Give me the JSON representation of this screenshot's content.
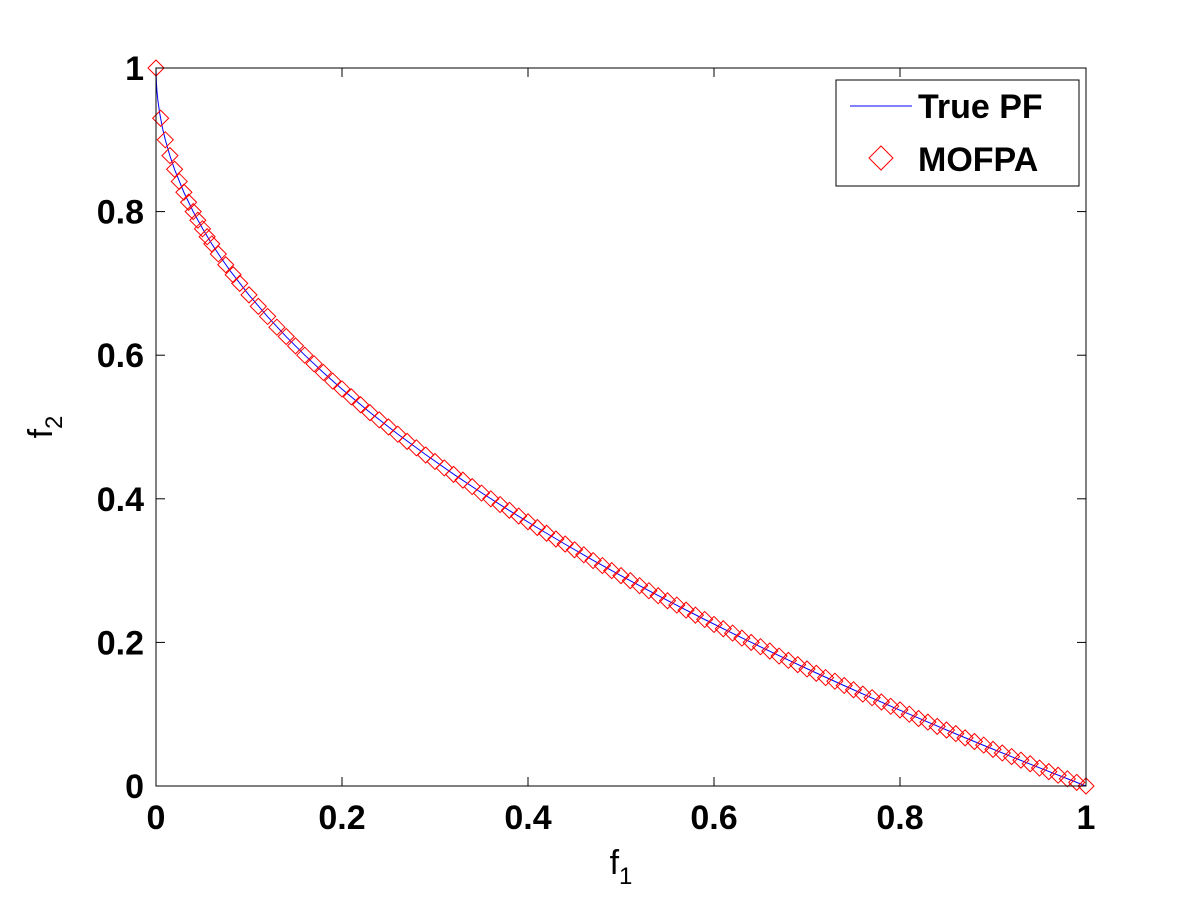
{
  "chart_data": {
    "type": "line",
    "title": "",
    "xlabel": {
      "base": "f",
      "sub": "1"
    },
    "ylabel": {
      "base": "f",
      "sub": "2"
    },
    "xlim": [
      0,
      1
    ],
    "ylim": [
      0,
      1
    ],
    "xticks": [
      0,
      0.2,
      0.4,
      0.6,
      0.8,
      1
    ],
    "yticks": [
      0,
      0.2,
      0.4,
      0.6,
      0.8,
      1
    ],
    "xtick_labels": [
      "0",
      "0.2",
      "0.4",
      "0.6",
      "0.8",
      "1"
    ],
    "ytick_labels": [
      "0",
      "0.2",
      "0.4",
      "0.6",
      "0.8",
      "1"
    ],
    "grid": false,
    "legend_position": "top-right",
    "series": [
      {
        "name": "True PF",
        "kind": "line",
        "color": "#0000ff",
        "x": [
          0,
          0.0005,
          0.001,
          0.002,
          0.004,
          0.007,
          0.01,
          0.015,
          0.02,
          0.03,
          0.04,
          0.05,
          0.06,
          0.07,
          0.08,
          0.1,
          0.12,
          0.14,
          0.16,
          0.18,
          0.2,
          0.23,
          0.26,
          0.29,
          0.32,
          0.35,
          0.38,
          0.41,
          0.44,
          0.47,
          0.5,
          0.53,
          0.56,
          0.59,
          0.62,
          0.65,
          0.68,
          0.71,
          0.74,
          0.77,
          0.8,
          0.83,
          0.86,
          0.89,
          0.92,
          0.95,
          0.98,
          1
        ],
        "y": [
          1,
          0.9776,
          0.9684,
          0.9553,
          0.9368,
          0.9163,
          0.9,
          0.8775,
          0.8586,
          0.8268,
          0.8,
          0.7764,
          0.7551,
          0.7354,
          0.7172,
          0.6838,
          0.6536,
          0.6258,
          0.6,
          0.5757,
          0.5528,
          0.5204,
          0.4901,
          0.4615,
          0.4343,
          0.4084,
          0.3836,
          0.3597,
          0.3367,
          0.3144,
          0.2929,
          0.272,
          0.2517,
          0.2319,
          0.2126,
          0.1938,
          0.1754,
          0.1574,
          0.1398,
          0.1225,
          0.1056,
          0.089,
          0.0726,
          0.0566,
          0.0408,
          0.0253,
          0.0101,
          0
        ]
      },
      {
        "name": "MOFPA",
        "kind": "markers",
        "marker": "diamond",
        "color": "#ff0000",
        "x": [
          0,
          0.005,
          0.01,
          0.015,
          0.02,
          0.025,
          0.03,
          0.035,
          0.04,
          0.045,
          0.05,
          0.055,
          0.06,
          0.067,
          0.075,
          0.083,
          0.09,
          0.1,
          0.11,
          0.12,
          0.13,
          0.14,
          0.15,
          0.16,
          0.17,
          0.18,
          0.19,
          0.2,
          0.21,
          0.22,
          0.23,
          0.24,
          0.25,
          0.26,
          0.27,
          0.28,
          0.29,
          0.3,
          0.31,
          0.32,
          0.33,
          0.34,
          0.35,
          0.36,
          0.37,
          0.38,
          0.39,
          0.4,
          0.41,
          0.42,
          0.43,
          0.44,
          0.45,
          0.46,
          0.47,
          0.48,
          0.49,
          0.5,
          0.51,
          0.52,
          0.53,
          0.54,
          0.55,
          0.56,
          0.57,
          0.58,
          0.59,
          0.6,
          0.61,
          0.62,
          0.63,
          0.64,
          0.65,
          0.66,
          0.67,
          0.68,
          0.69,
          0.7,
          0.71,
          0.72,
          0.73,
          0.74,
          0.75,
          0.76,
          0.77,
          0.78,
          0.79,
          0.8,
          0.81,
          0.82,
          0.83,
          0.84,
          0.85,
          0.86,
          0.87,
          0.88,
          0.89,
          0.9,
          0.91,
          0.92,
          0.93,
          0.94,
          0.95,
          0.96,
          0.97,
          0.98,
          0.99,
          1
        ],
        "y": [
          1,
          0.93,
          0.9,
          0.878,
          0.859,
          0.842,
          0.827,
          0.813,
          0.8,
          0.788,
          0.776,
          0.765,
          0.755,
          0.741,
          0.726,
          0.712,
          0.7,
          0.684,
          0.668,
          0.654,
          0.639,
          0.626,
          0.613,
          0.6,
          0.588,
          0.576,
          0.564,
          0.553,
          0.542,
          0.531,
          0.52,
          0.51,
          0.5,
          0.49,
          0.48,
          0.471,
          0.461,
          0.452,
          0.443,
          0.434,
          0.426,
          0.417,
          0.408,
          0.4,
          0.392,
          0.384,
          0.376,
          0.368,
          0.36,
          0.352,
          0.344,
          0.337,
          0.329,
          0.322,
          0.314,
          0.307,
          0.3,
          0.293,
          0.286,
          0.279,
          0.272,
          0.265,
          0.258,
          0.252,
          0.245,
          0.238,
          0.232,
          0.225,
          0.219,
          0.213,
          0.206,
          0.2,
          0.194,
          0.188,
          0.181,
          0.175,
          0.169,
          0.163,
          0.157,
          0.151,
          0.146,
          0.14,
          0.134,
          0.128,
          0.123,
          0.117,
          0.111,
          0.106,
          0.1,
          0.094,
          0.089,
          0.083,
          0.078,
          0.073,
          0.067,
          0.062,
          0.057,
          0.051,
          0.046,
          0.041,
          0.036,
          0.031,
          0.025,
          0.02,
          0.015,
          0.01,
          0.005,
          0
        ]
      }
    ]
  }
}
